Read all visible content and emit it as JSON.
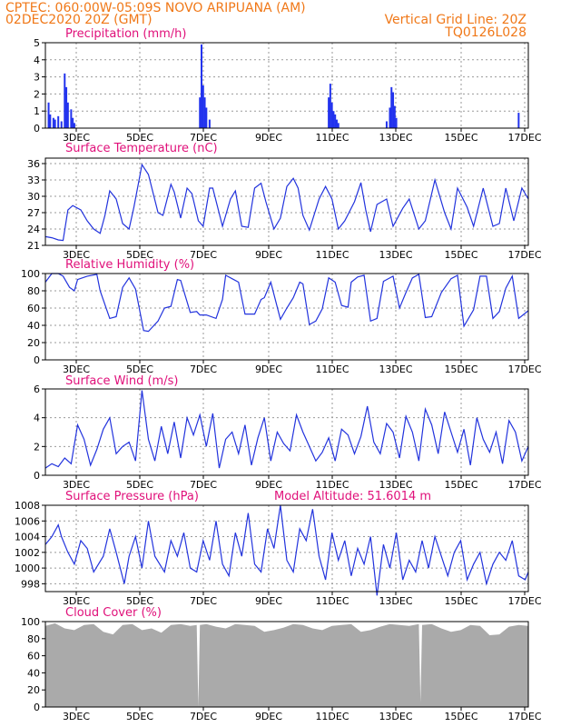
{
  "header": {
    "line1_left": "CPTEC:   060:00W-05:09S   NOVO ARIPUANA (AM)",
    "line2_left": "02DEC2020 20Z (GMT)",
    "line2_right": "Vertical Grid Line: 20Z",
    "line3_right": "TQ0126L028"
  },
  "colors": {
    "header": "#f07818",
    "title": "#e0107a",
    "line": "#2233dd",
    "bars": "#2233ee",
    "cloud": "#aaaaaa"
  },
  "chart_data": [
    {
      "type": "bar",
      "title": "Precipitation (mm/h)",
      "xlim": [
        0,
        15
      ],
      "ylim": [
        0,
        5
      ],
      "yticks": [
        0,
        1,
        2,
        3,
        4,
        5
      ],
      "xticks": [
        "3DEC",
        "5DEC",
        "7DEC",
        "9DEC",
        "11DEC",
        "13DEC",
        "15DEC",
        "17DEC"
      ],
      "grid": true,
      "x": [
        0.1,
        0.15,
        0.25,
        0.3,
        0.4,
        0.5,
        0.6,
        0.65,
        0.7,
        0.8,
        0.85,
        0.9,
        4.8,
        4.85,
        4.9,
        4.95,
        5.0,
        5.1,
        8.8,
        8.85,
        8.9,
        8.95,
        9.0,
        9.05,
        9.1,
        10.6,
        10.7,
        10.75,
        10.8,
        10.85,
        10.9,
        14.7
      ],
      "values": [
        1.5,
        0.8,
        0.6,
        0.5,
        0.7,
        0.4,
        3.2,
        2.4,
        1.5,
        1.1,
        0.6,
        0.3,
        1.8,
        4.9,
        2.5,
        1.8,
        1.2,
        0.5,
        1.8,
        2.6,
        1.5,
        1.0,
        0.8,
        0.5,
        0.3,
        0.4,
        1.2,
        2.4,
        2.1,
        1.3,
        0.6,
        0.9
      ]
    },
    {
      "type": "line",
      "title": "Surface Temperature (nC)",
      "xlim": [
        0,
        15
      ],
      "ylim": [
        21,
        37
      ],
      "yticks": [
        21,
        24,
        27,
        30,
        33,
        36
      ],
      "xticks": [
        "3DEC",
        "5DEC",
        "7DEC",
        "9DEC",
        "11DEC",
        "13DEC",
        "15DEC",
        "17DEC"
      ],
      "grid": true,
      "x": [
        0,
        0.2,
        0.4,
        0.55,
        0.7,
        0.85,
        1.1,
        1.3,
        1.5,
        1.7,
        1.85,
        2.0,
        2.2,
        2.4,
        2.6,
        2.75,
        3.0,
        3.2,
        3.5,
        3.65,
        3.9,
        4.0,
        4.2,
        4.4,
        4.55,
        4.75,
        4.9,
        5.1,
        5.2,
        5.5,
        5.75,
        5.9,
        6.1,
        6.3,
        6.5,
        6.7,
        6.85,
        7.1,
        7.3,
        7.5,
        7.7,
        7.85,
        8.0,
        8.2,
        8.5,
        8.7,
        8.9,
        9.1,
        9.3,
        9.6,
        9.8,
        9.95,
        10.1,
        10.3,
        10.6,
        10.8,
        11.1,
        11.3,
        11.6,
        11.8,
        12.1,
        12.4,
        12.6,
        12.8,
        13.1,
        13.3,
        13.6,
        13.9,
        14.1,
        14.3,
        14.55,
        14.8,
        15.0
      ],
      "values": [
        22.6,
        22.4,
        22.0,
        21.9,
        27.5,
        28.3,
        27.5,
        25.5,
        24.0,
        23.2,
        26.5,
        31.0,
        29.5,
        25.0,
        24.0,
        28.0,
        35.8,
        34.0,
        27.0,
        26.5,
        32.2,
        30.8,
        26.0,
        31.5,
        30.5,
        25.5,
        24.5,
        31.5,
        31.5,
        24.5,
        29.5,
        31.0,
        24.5,
        24.3,
        31.5,
        32.4,
        29.0,
        24.0,
        26.0,
        31.8,
        33.3,
        31.5,
        26.5,
        23.8,
        29.5,
        31.8,
        29.5,
        24.0,
        25.5,
        29.0,
        32.5,
        27.5,
        23.5,
        28.5,
        29.5,
        24.5,
        27.8,
        29.5,
        24.0,
        25.5,
        33.0,
        27.0,
        24.0,
        31.5,
        28.0,
        24.5,
        31.5,
        24.5,
        25.0,
        31.5,
        25.5,
        31.5,
        29.5
      ]
    },
    {
      "type": "line",
      "title": "Relative Humidity (%)",
      "xlim": [
        0,
        15
      ],
      "ylim": [
        0,
        100
      ],
      "yticks": [
        0,
        20,
        40,
        60,
        80,
        100
      ],
      "xticks": [
        "3DEC",
        "5DEC",
        "7DEC",
        "9DEC",
        "11DEC",
        "13DEC",
        "15DEC",
        "17DEC"
      ],
      "grid": true,
      "x": [
        0,
        0.2,
        0.4,
        0.55,
        0.75,
        0.9,
        1.0,
        1.3,
        1.6,
        1.7,
        2.0,
        2.2,
        2.4,
        2.6,
        2.8,
        3.05,
        3.2,
        3.5,
        3.7,
        3.9,
        4.1,
        4.2,
        4.5,
        4.7,
        4.8,
        5.0,
        5.3,
        5.5,
        5.6,
        5.8,
        6.0,
        6.2,
        6.5,
        6.7,
        6.8,
        7.0,
        7.3,
        7.5,
        7.7,
        7.9,
        8.0,
        8.2,
        8.4,
        8.6,
        8.8,
        9.0,
        9.2,
        9.4,
        9.5,
        9.7,
        9.9,
        10.1,
        10.3,
        10.5,
        10.8,
        11.0,
        11.2,
        11.4,
        11.6,
        11.8,
        12.0,
        12.3,
        12.6,
        12.8,
        13.0,
        13.3,
        13.5,
        13.7,
        13.9,
        14.1,
        14.3,
        14.5,
        14.7,
        15.0
      ],
      "values": [
        90,
        100,
        100,
        97,
        84,
        80,
        93,
        97,
        99,
        80,
        48,
        50,
        84,
        95,
        82,
        34,
        33,
        45,
        60,
        62,
        93,
        92,
        55,
        56,
        52,
        52,
        48,
        70,
        98,
        94,
        90,
        53,
        53,
        70,
        72,
        90,
        47,
        60,
        72,
        90,
        88,
        41,
        45,
        59,
        95,
        90,
        63,
        61,
        90,
        96,
        98,
        45,
        48,
        91,
        97,
        60,
        78,
        95,
        99,
        49,
        50,
        78,
        94,
        98,
        39,
        58,
        97,
        97,
        48,
        56,
        83,
        97,
        48,
        57
      ]
    },
    {
      "type": "line",
      "title": "Surface Wind (m/s)",
      "xlim": [
        0,
        15
      ],
      "ylim": [
        0,
        6
      ],
      "yticks": [
        0,
        2,
        4,
        6
      ],
      "xticks": [
        "3DEC",
        "5DEC",
        "7DEC",
        "9DEC",
        "11DEC",
        "13DEC",
        "15DEC",
        "17DEC"
      ],
      "grid": true,
      "x": [
        0,
        0.2,
        0.4,
        0.6,
        0.8,
        1.0,
        1.2,
        1.4,
        1.6,
        1.8,
        2.0,
        2.2,
        2.4,
        2.6,
        2.8,
        3.0,
        3.2,
        3.4,
        3.6,
        3.8,
        4.0,
        4.2,
        4.4,
        4.6,
        4.8,
        5.0,
        5.2,
        5.4,
        5.6,
        5.8,
        6.0,
        6.2,
        6.4,
        6.6,
        6.8,
        7.0,
        7.2,
        7.4,
        7.6,
        7.8,
        8.0,
        8.2,
        8.4,
        8.6,
        8.8,
        9.0,
        9.2,
        9.4,
        9.6,
        9.8,
        10.0,
        10.2,
        10.4,
        10.6,
        10.8,
        11.0,
        11.2,
        11.4,
        11.6,
        11.8,
        12.0,
        12.2,
        12.4,
        12.6,
        12.8,
        13.0,
        13.2,
        13.4,
        13.6,
        13.8,
        14.0,
        14.2,
        14.4,
        14.6,
        14.8,
        15.0
      ],
      "values": [
        0.5,
        0.8,
        0.6,
        1.2,
        0.8,
        3.5,
        2.5,
        0.7,
        1.8,
        3.2,
        4.0,
        1.5,
        2.0,
        2.3,
        1.0,
        5.9,
        2.5,
        1.0,
        3.4,
        1.5,
        3.7,
        1.2,
        4.0,
        2.8,
        4.2,
        2.0,
        4.3,
        0.5,
        2.5,
        3.0,
        1.5,
        3.5,
        0.7,
        2.6,
        4.0,
        1.0,
        3.0,
        2.2,
        1.7,
        4.2,
        3.0,
        2.0,
        1.0,
        1.6,
        2.6,
        1.0,
        3.2,
        2.8,
        1.5,
        2.7,
        4.8,
        2.3,
        1.5,
        3.6,
        3.0,
        1.2,
        4.1,
        3.0,
        1.0,
        4.6,
        3.5,
        1.5,
        4.4,
        3.0,
        1.6,
        3.2,
        0.7,
        4.0,
        2.5,
        1.6,
        3.0,
        0.8,
        3.8,
        3.0,
        1.0,
        2.0
      ]
    },
    {
      "type": "line",
      "title": "Surface Pressure (hPa)",
      "annotation": "Model Altitude: 51.6014 m",
      "xlim": [
        0,
        15
      ],
      "ylim": [
        997,
        1008
      ],
      "yticks": [
        998,
        1000,
        1002,
        1004,
        1006,
        1008
      ],
      "xticks": [
        "3DEC",
        "5DEC",
        "7DEC",
        "9DEC",
        "11DEC",
        "13DEC",
        "15DEC",
        "17DEC"
      ],
      "grid": true,
      "x": [
        0,
        0.2,
        0.4,
        0.5,
        0.7,
        0.9,
        1.1,
        1.3,
        1.5,
        1.8,
        2.0,
        2.2,
        2.45,
        2.6,
        2.8,
        3.0,
        3.2,
        3.4,
        3.7,
        3.9,
        4.1,
        4.3,
        4.5,
        4.7,
        4.9,
        5.1,
        5.3,
        5.5,
        5.7,
        5.9,
        6.1,
        6.3,
        6.5,
        6.7,
        6.9,
        7.1,
        7.3,
        7.5,
        7.7,
        7.9,
        8.1,
        8.3,
        8.5,
        8.7,
        8.9,
        9.1,
        9.3,
        9.5,
        9.7,
        9.9,
        10.1,
        10.3,
        10.5,
        10.7,
        10.9,
        11.1,
        11.3,
        11.5,
        11.7,
        11.9,
        12.1,
        12.3,
        12.5,
        12.7,
        12.9,
        13.1,
        13.3,
        13.5,
        13.7,
        13.9,
        14.1,
        14.3,
        14.5,
        14.7,
        14.9,
        15.0
      ],
      "values": [
        1003.0,
        1004.0,
        1005.5,
        1004.0,
        1002.0,
        1000.5,
        1003.5,
        1002.5,
        999.5,
        1001.5,
        1005.0,
        1002.0,
        998.0,
        1001.5,
        1004.0,
        1000.0,
        1006.0,
        1001.5,
        999.5,
        1003.5,
        1001.5,
        1004.5,
        1000.0,
        999.5,
        1003.5,
        1001.0,
        1006.0,
        1000.5,
        999.0,
        1004.5,
        1001.5,
        1007.0,
        1000.5,
        999.5,
        1005.0,
        1002.5,
        1008.0,
        1001.0,
        999.5,
        1005.0,
        1003.5,
        1007.5,
        1001.5,
        998.5,
        1004.5,
        1001.0,
        1003.5,
        999.0,
        1002.5,
        1000.5,
        1004.0,
        996.5,
        1003.0,
        1000.0,
        1004.5,
        998.5,
        1001.0,
        999.5,
        1003.5,
        1000.0,
        1004.0,
        1001.5,
        999.0,
        1002.0,
        1003.5,
        998.5,
        1000.5,
        1002.0,
        998.0,
        1000.5,
        1002.0,
        1001.0,
        1003.5,
        999.0,
        998.5,
        999.5
      ]
    },
    {
      "type": "area",
      "title": "Cloud Cover (%)",
      "xlim": [
        0,
        15
      ],
      "ylim": [
        0,
        100
      ],
      "yticks": [
        0,
        20,
        40,
        60,
        80,
        100
      ],
      "xticks": [
        "3DEC",
        "5DEC",
        "7DEC",
        "9DEC",
        "11DEC",
        "13DEC",
        "15DEC",
        "17DEC"
      ],
      "grid": false,
      "x": [
        0,
        0.3,
        0.6,
        0.9,
        1.2,
        1.5,
        1.8,
        2.1,
        2.4,
        2.7,
        3.0,
        3.3,
        3.6,
        3.9,
        4.2,
        4.5,
        4.7,
        4.75,
        4.8,
        5.0,
        5.3,
        5.6,
        5.9,
        6.2,
        6.5,
        6.8,
        7.1,
        7.4,
        7.7,
        8.0,
        8.3,
        8.6,
        8.9,
        9.2,
        9.5,
        9.8,
        10.1,
        10.4,
        10.7,
        11.0,
        11.3,
        11.6,
        11.65,
        11.7,
        12.0,
        12.3,
        12.6,
        12.9,
        13.2,
        13.5,
        13.8,
        14.1,
        14.4,
        14.7,
        15.0
      ],
      "values": [
        95,
        98,
        92,
        90,
        96,
        97,
        88,
        85,
        96,
        97,
        90,
        92,
        87,
        96,
        97,
        95,
        96,
        0,
        96,
        97,
        94,
        92,
        97,
        96,
        95,
        88,
        90,
        93,
        97,
        96,
        92,
        90,
        95,
        96,
        97,
        88,
        90,
        94,
        97,
        96,
        95,
        97,
        5,
        96,
        97,
        92,
        88,
        90,
        96,
        95,
        84,
        85,
        94,
        96,
        95
      ]
    }
  ]
}
